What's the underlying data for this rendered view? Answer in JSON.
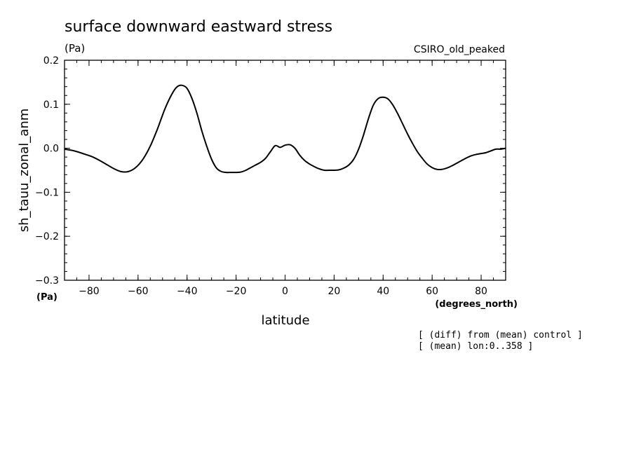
{
  "chart_data": {
    "type": "line",
    "title": "surface downward eastward stress",
    "title_units": "(Pa)",
    "model_label": "CSIRO_old_peaked",
    "ylabel": "sh_tauu_zonal_anm",
    "ylabel_units": "(Pa)",
    "xlabel": "latitude",
    "xlabel_units": "(degrees_north)",
    "notes": [
      "[ (diff) from (mean) control ]",
      "[ (mean) lon:0..358 ]"
    ],
    "xlim": [
      -90,
      90
    ],
    "ylim": [
      -0.3,
      0.2
    ],
    "x_ticks": [
      -80,
      -60,
      -40,
      -20,
      0,
      20,
      40,
      60,
      80
    ],
    "x_tick_labels": [
      "−80",
      "−60",
      "−40",
      "−20",
      "0",
      "20",
      "40",
      "60",
      "80"
    ],
    "y_ticks": [
      0.2,
      0.1,
      0.0,
      -0.1,
      -0.2,
      -0.3
    ],
    "y_tick_labels": [
      "0.2",
      "0.1",
      "0.0",
      "−0.1",
      "−0.2",
      "−0.3"
    ],
    "grid": false,
    "series": [
      {
        "x": [
          -90,
          -86,
          -82,
          -78,
          -74,
          -70,
          -67,
          -64,
          -61,
          -58,
          -55,
          -52,
          -49,
          -46,
          -44,
          -42,
          -40,
          -38,
          -36,
          -34,
          -32,
          -30,
          -28,
          -26,
          -24,
          -22,
          -20,
          -18,
          -16,
          -14,
          -12,
          -10,
          -8,
          -6,
          -4,
          -2,
          0,
          2,
          4,
          6,
          8,
          10,
          12,
          14,
          16,
          18,
          20,
          22,
          24,
          26,
          28,
          30,
          32,
          34,
          36,
          38,
          40,
          42,
          44,
          46,
          48,
          50,
          52,
          54,
          56,
          58,
          60,
          62,
          64,
          66,
          68,
          70,
          72,
          74,
          76,
          78,
          80,
          82,
          84,
          86,
          88,
          90
        ],
        "values": [
          -0.002,
          -0.006,
          -0.013,
          -0.021,
          -0.033,
          -0.046,
          -0.053,
          -0.053,
          -0.044,
          -0.025,
          0.005,
          0.045,
          0.09,
          0.125,
          0.14,
          0.143,
          0.136,
          0.113,
          0.08,
          0.04,
          0.005,
          -0.025,
          -0.045,
          -0.053,
          -0.055,
          -0.055,
          -0.055,
          -0.054,
          -0.05,
          -0.044,
          -0.038,
          -0.032,
          -0.023,
          -0.008,
          0.006,
          0.002,
          0.007,
          0.008,
          0.0,
          -0.016,
          -0.028,
          -0.036,
          -0.042,
          -0.047,
          -0.05,
          -0.05,
          -0.05,
          -0.049,
          -0.045,
          -0.038,
          -0.025,
          -0.002,
          0.03,
          0.067,
          0.098,
          0.113,
          0.116,
          0.112,
          0.098,
          0.078,
          0.055,
          0.032,
          0.011,
          -0.008,
          -0.023,
          -0.036,
          -0.044,
          -0.048,
          -0.048,
          -0.045,
          -0.04,
          -0.034,
          -0.028,
          -0.022,
          -0.017,
          -0.014,
          -0.012,
          -0.01,
          -0.006,
          -0.002,
          -0.002,
          0.0
        ]
      }
    ]
  }
}
